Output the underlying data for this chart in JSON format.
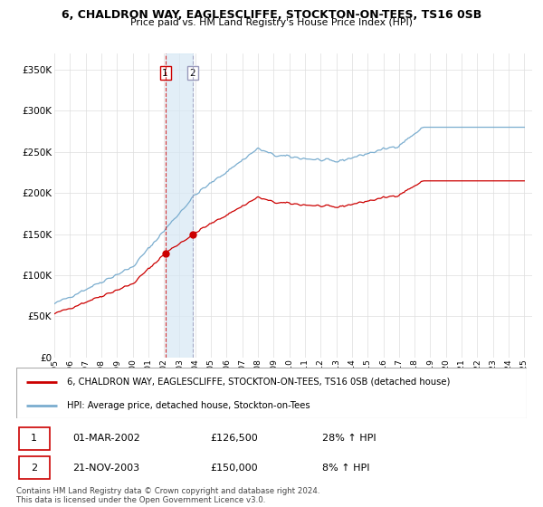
{
  "title": "6, CHALDRON WAY, EAGLESCLIFFE, STOCKTON-ON-TEES, TS16 0SB",
  "subtitle": "Price paid vs. HM Land Registry's House Price Index (HPI)",
  "legend_line1": "6, CHALDRON WAY, EAGLESCLIFFE, STOCKTON-ON-TEES, TS16 0SB (detached house)",
  "legend_line2": "HPI: Average price, detached house, Stockton-on-Tees",
  "footer": "Contains HM Land Registry data © Crown copyright and database right 2024.\nThis data is licensed under the Open Government Licence v3.0.",
  "transaction1_date": "01-MAR-2002",
  "transaction1_price": "£126,500",
  "transaction1_hpi": "28% ↑ HPI",
  "transaction2_date": "21-NOV-2003",
  "transaction2_price": "£150,000",
  "transaction2_hpi": "8% ↑ HPI",
  "sale_color": "#cc0000",
  "hpi_color": "#7aadcf",
  "ylim": [
    0,
    370000
  ],
  "yticks": [
    0,
    50000,
    100000,
    150000,
    200000,
    250000,
    300000,
    350000
  ],
  "ytick_labels": [
    "£0",
    "£50K",
    "£100K",
    "£150K",
    "£200K",
    "£250K",
    "£300K",
    "£350K"
  ],
  "sale_idx1": 85,
  "sale_idx2": 106,
  "sale_val1": 126500,
  "sale_val2": 150000,
  "n_months": 361,
  "start_year": 1995
}
